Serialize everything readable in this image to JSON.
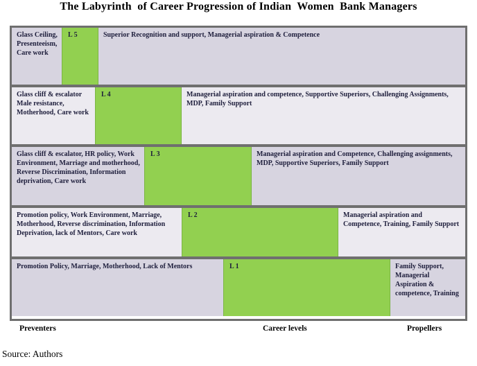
{
  "title": "The Labyrinth  of Career Progression of Indian  Women  Bank Managers",
  "source_note": "Source: Authors",
  "axis": {
    "left_label": "Preventers",
    "center_label": "Career levels",
    "right_label": "Propellers"
  },
  "colors": {
    "level_green": "#92d050",
    "row_odd_bg": "#d7d4e0",
    "row_even_bg": "#eceaf0",
    "border_gray": "#6f6f6f",
    "cell_text": "#1e1e3c"
  },
  "rows": [
    {
      "level": "L 5",
      "preventers": "Glass Ceiling, Presenteeism, Care work",
      "propellers": "Superior Recognition and support,  Managerial aspiration & Competence"
    },
    {
      "level": "L 4",
      "preventers": "Glass cliff & escalator Male resistance, Motherhood, Care work",
      "propellers": "Managerial aspiration and competence, Supportive Superiors, Challenging Assignments, MDP, Family Support"
    },
    {
      "level": "L 3",
      "preventers": "Glass cliff & escalator, HR policy, Work Environment, Marriage and motherhood, Reverse Discrimination, Information deprivation, Care work",
      "propellers": "Managerial aspiration and Competence, Challenging assignments, MDP, Supportive Superiors, Family Support"
    },
    {
      "level": "L 2",
      "preventers": "Promotion policy, Work Environment, Marriage, Motherhood, Reverse discrimination, Information Deprivation, lack of Mentors, Care work",
      "propellers": "Managerial aspiration and Competence, Training, Family Support"
    },
    {
      "level": "L 1",
      "preventers": "Promotion Policy, Marriage, Motherhood, Lack of Mentors",
      "propellers": "Family Support, Managerial Aspiration & competence, Training"
    }
  ]
}
